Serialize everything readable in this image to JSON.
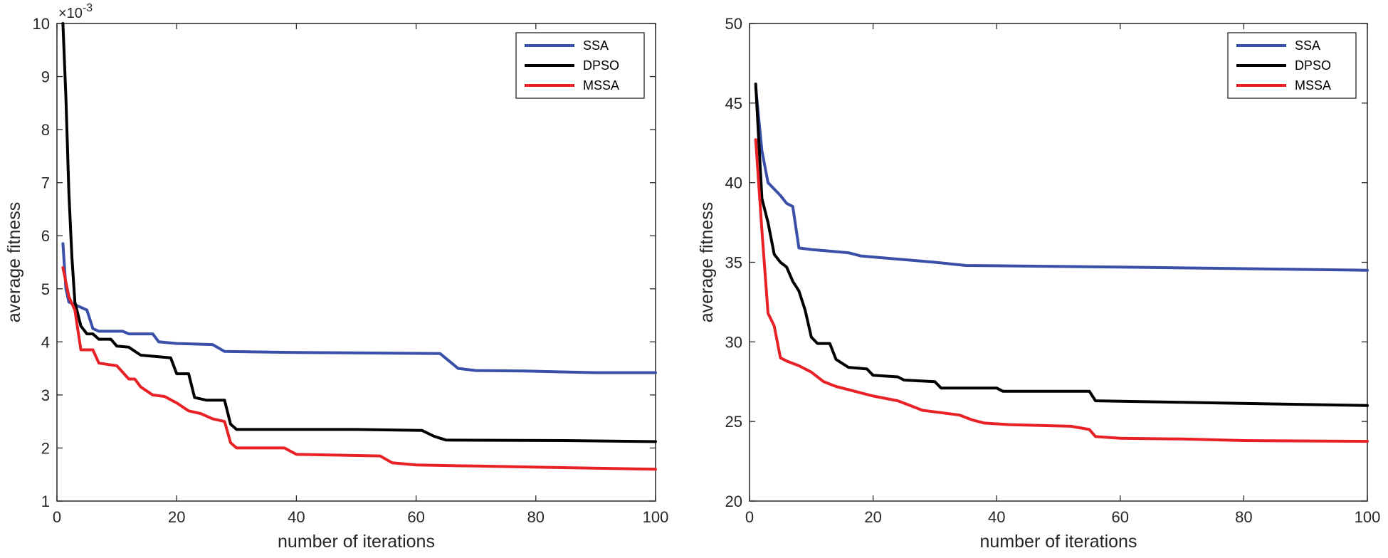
{
  "chart_data": [
    {
      "type": "line",
      "title": "",
      "xlabel": "number of iterations",
      "ylabel": "average fitness",
      "xlim": [
        0,
        100
      ],
      "ylim": [
        1,
        10
      ],
      "xticks": [
        "0",
        "20",
        "40",
        "60",
        "80",
        "100"
      ],
      "yticks": [
        "1",
        "2",
        "3",
        "4",
        "5",
        "6",
        "7",
        "8",
        "9",
        "10"
      ],
      "y_multiplier": "×10",
      "y_multiplier_exp": "-3",
      "legend_position": "top-right",
      "series": [
        {
          "name": "SSA",
          "color": "#3a4fa8",
          "points": [
            [
              1,
              5.85
            ],
            [
              1.5,
              5.0
            ],
            [
              2,
              4.75
            ],
            [
              3,
              4.7
            ],
            [
              5,
              4.6
            ],
            [
              6,
              4.25
            ],
            [
              7,
              4.2
            ],
            [
              11,
              4.2
            ],
            [
              12,
              4.15
            ],
            [
              16,
              4.15
            ],
            [
              17,
              4.0
            ],
            [
              20,
              3.97
            ],
            [
              26,
              3.95
            ],
            [
              28,
              3.82
            ],
            [
              40,
              3.8
            ],
            [
              64,
              3.78
            ],
            [
              67,
              3.5
            ],
            [
              70,
              3.46
            ],
            [
              78,
              3.45
            ],
            [
              90,
              3.42
            ],
            [
              100,
              3.42
            ]
          ]
        },
        {
          "name": "DPSO",
          "color": "#000000",
          "points": [
            [
              1,
              10.0
            ],
            [
              1.5,
              8.6
            ],
            [
              2,
              6.8
            ],
            [
              2.5,
              5.6
            ],
            [
              3,
              4.75
            ],
            [
              4,
              4.3
            ],
            [
              5,
              4.15
            ],
            [
              6,
              4.15
            ],
            [
              7,
              4.05
            ],
            [
              9,
              4.05
            ],
            [
              10,
              3.92
            ],
            [
              12,
              3.9
            ],
            [
              14,
              3.75
            ],
            [
              19,
              3.7
            ],
            [
              20,
              3.4
            ],
            [
              22,
              3.4
            ],
            [
              23,
              2.95
            ],
            [
              25,
              2.9
            ],
            [
              28,
              2.9
            ],
            [
              29,
              2.45
            ],
            [
              30,
              2.35
            ],
            [
              50,
              2.35
            ],
            [
              61,
              2.33
            ],
            [
              63,
              2.22
            ],
            [
              65,
              2.15
            ],
            [
              85,
              2.14
            ],
            [
              100,
              2.12
            ]
          ]
        },
        {
          "name": "MSSA",
          "color": "#e82127",
          "points": [
            [
              1,
              5.4
            ],
            [
              2,
              4.85
            ],
            [
              3,
              4.6
            ],
            [
              4,
              3.85
            ],
            [
              6,
              3.85
            ],
            [
              7,
              3.6
            ],
            [
              10,
              3.55
            ],
            [
              12,
              3.3
            ],
            [
              13,
              3.3
            ],
            [
              14,
              3.15
            ],
            [
              16,
              3.0
            ],
            [
              18,
              2.97
            ],
            [
              20,
              2.85
            ],
            [
              22,
              2.7
            ],
            [
              24,
              2.65
            ],
            [
              26,
              2.55
            ],
            [
              28,
              2.5
            ],
            [
              29,
              2.1
            ],
            [
              30,
              2.0
            ],
            [
              38,
              2.0
            ],
            [
              40,
              1.88
            ],
            [
              54,
              1.85
            ],
            [
              56,
              1.72
            ],
            [
              60,
              1.68
            ],
            [
              70,
              1.66
            ],
            [
              100,
              1.6
            ]
          ]
        }
      ]
    },
    {
      "type": "line",
      "title": "",
      "xlabel": "number of iterations",
      "ylabel": "average fitness",
      "xlim": [
        0,
        100
      ],
      "ylim": [
        20,
        50
      ],
      "xticks": [
        "0",
        "20",
        "40",
        "60",
        "80",
        "100"
      ],
      "yticks": [
        "20",
        "25",
        "30",
        "35",
        "40",
        "45",
        "50"
      ],
      "legend_position": "top-right",
      "series": [
        {
          "name": "SSA",
          "color": "#3a4fa8",
          "points": [
            [
              1,
              46.0
            ],
            [
              2,
              42.0
            ],
            [
              3,
              40.0
            ],
            [
              5,
              39.2
            ],
            [
              6,
              38.7
            ],
            [
              7,
              38.5
            ],
            [
              8,
              35.9
            ],
            [
              10,
              35.8
            ],
            [
              16,
              35.6
            ],
            [
              18,
              35.4
            ],
            [
              30,
              35.0
            ],
            [
              35,
              34.8
            ],
            [
              60,
              34.7
            ],
            [
              100,
              34.5
            ]
          ]
        },
        {
          "name": "DPSO",
          "color": "#000000",
          "points": [
            [
              1,
              46.2
            ],
            [
              2,
              39.0
            ],
            [
              3,
              37.5
            ],
            [
              4,
              35.5
            ],
            [
              5,
              35.0
            ],
            [
              6,
              34.7
            ],
            [
              7,
              33.8
            ],
            [
              8,
              33.2
            ],
            [
              9,
              32.0
            ],
            [
              10,
              30.3
            ],
            [
              11,
              29.9
            ],
            [
              13,
              29.9
            ],
            [
              14,
              28.9
            ],
            [
              16,
              28.4
            ],
            [
              19,
              28.3
            ],
            [
              20,
              27.9
            ],
            [
              24,
              27.8
            ],
            [
              25,
              27.6
            ],
            [
              30,
              27.5
            ],
            [
              31,
              27.1
            ],
            [
              40,
              27.1
            ],
            [
              41,
              26.9
            ],
            [
              55,
              26.9
            ],
            [
              56,
              26.3
            ],
            [
              70,
              26.2
            ],
            [
              100,
              26.0
            ]
          ]
        },
        {
          "name": "MSSA",
          "color": "#e82127",
          "points": [
            [
              1,
              42.7
            ],
            [
              2,
              37.0
            ],
            [
              3,
              31.8
            ],
            [
              4,
              31.0
            ],
            [
              5,
              29.0
            ],
            [
              6,
              28.8
            ],
            [
              8,
              28.5
            ],
            [
              10,
              28.1
            ],
            [
              12,
              27.5
            ],
            [
              14,
              27.2
            ],
            [
              16,
              27.0
            ],
            [
              18,
              26.8
            ],
            [
              20,
              26.6
            ],
            [
              24,
              26.3
            ],
            [
              26,
              26.0
            ],
            [
              28,
              25.7
            ],
            [
              30,
              25.6
            ],
            [
              34,
              25.4
            ],
            [
              36,
              25.1
            ],
            [
              38,
              24.9
            ],
            [
              42,
              24.8
            ],
            [
              52,
              24.7
            ],
            [
              55,
              24.5
            ],
            [
              56,
              24.05
            ],
            [
              60,
              23.95
            ],
            [
              70,
              23.9
            ],
            [
              80,
              23.8
            ],
            [
              100,
              23.75
            ]
          ]
        }
      ]
    }
  ]
}
